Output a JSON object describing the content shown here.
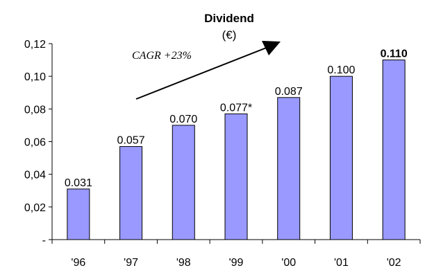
{
  "chart_data": {
    "type": "bar",
    "title": "Dividend",
    "unit": "(€)",
    "categories": [
      "'96",
      "'97",
      "'98",
      "'99",
      "'00",
      "'01",
      "'02"
    ],
    "values": [
      0.031,
      0.057,
      0.07,
      0.077,
      0.087,
      0.1,
      0.11
    ],
    "data_labels": [
      "0.031",
      "0.057",
      "0.070",
      "0.077*",
      "0.087",
      "0.100",
      "0.110"
    ],
    "bold_labels": [
      false,
      false,
      false,
      false,
      false,
      false,
      true
    ],
    "ylim": [
      0,
      0.12
    ],
    "yticks": [
      0,
      0.02,
      0.04,
      0.06,
      0.08,
      0.1,
      0.12
    ],
    "ytick_labels": [
      "-",
      "0,02",
      "0,04",
      "0,06",
      "0,08",
      "0,10",
      "0,12"
    ],
    "annotation": "CAGR +23%",
    "grid": false,
    "bar_color": "#9999ff",
    "bar_edge": "#000000"
  }
}
